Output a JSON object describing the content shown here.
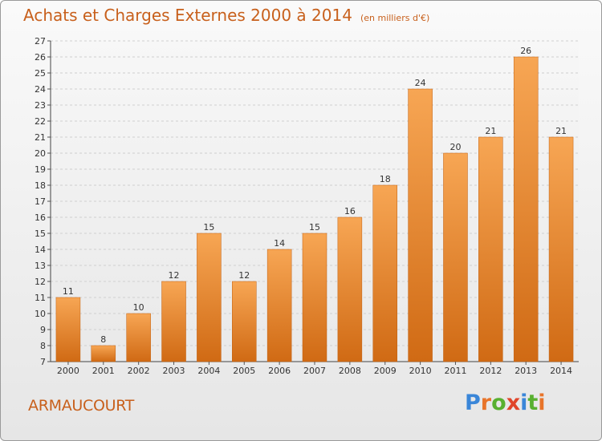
{
  "title": "Achats et Charges Externes 2000 à 2014",
  "subtitle": "(en milliers d'€)",
  "town": "ARMAUCOURT",
  "logo": {
    "letters": [
      "P",
      "r",
      "o",
      "x",
      "i",
      "t",
      "i"
    ],
    "colors": [
      "#3a86d8",
      "#e8742a",
      "#58b030",
      "#e0452a",
      "#3a86d8",
      "#58b030",
      "#e8742a"
    ]
  },
  "colors": {
    "bar": "#f08a2a",
    "title": "#c8601c"
  },
  "chart_data": {
    "type": "bar",
    "title": "Achats et Charges Externes 2000 à 2014",
    "subtitle": "(en milliers d'€)",
    "xlabel": "",
    "ylabel": "",
    "categories": [
      "2000",
      "2001",
      "2002",
      "2003",
      "2004",
      "2005",
      "2006",
      "2007",
      "2008",
      "2009",
      "2010",
      "2011",
      "2012",
      "2013",
      "2014"
    ],
    "values": [
      11,
      8,
      10,
      12,
      15,
      12,
      14,
      15,
      16,
      18,
      24,
      20,
      21,
      26,
      21
    ],
    "ylim": [
      7,
      27
    ],
    "yticks": [
      7,
      8,
      9,
      10,
      11,
      12,
      13,
      14,
      15,
      16,
      17,
      18,
      19,
      20,
      21,
      22,
      23,
      24,
      25,
      26,
      27
    ],
    "grid": true
  }
}
